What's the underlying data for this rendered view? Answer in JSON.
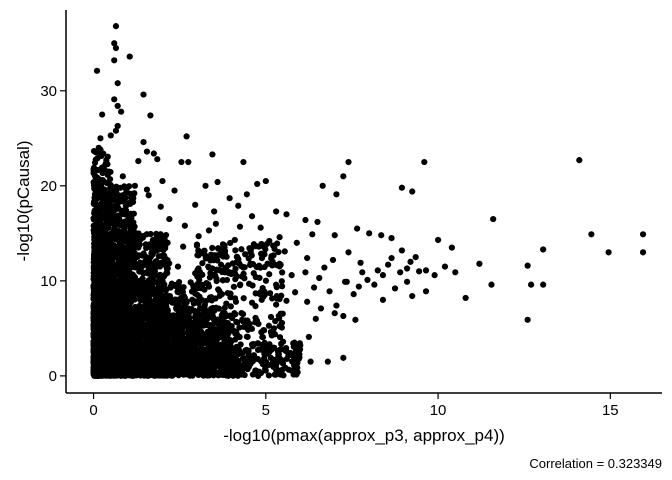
{
  "chart_data": {
    "type": "scatter",
    "title": "",
    "xlabel": "-log10(pmax(approx_p3, approx_p4))",
    "ylabel": "-log10(pCausal)",
    "caption": "Correlation = 0.323349",
    "xlim": [
      -0.8,
      16.5
    ],
    "ylim": [
      -1.8,
      38.5
    ],
    "x_ticks": [
      0,
      5,
      10,
      15
    ],
    "x_tick_labels": [
      "0",
      "5",
      "10",
      "15"
    ],
    "y_ticks": [
      0,
      10,
      20,
      30
    ],
    "y_tick_labels": [
      "0",
      "10",
      "20",
      "30"
    ],
    "grid": false,
    "legend": "none",
    "point_color": "#000000",
    "points": [
      [
        0.65,
        36.8
      ],
      [
        0.6,
        35.0
      ],
      [
        0.65,
        34.5
      ],
      [
        1.05,
        33.6
      ],
      [
        0.6,
        33.2
      ],
      [
        0.1,
        32.1
      ],
      [
        0.7,
        30.8
      ],
      [
        1.45,
        29.6
      ],
      [
        0.6,
        29.1
      ],
      [
        0.25,
        27.5
      ],
      [
        0.7,
        28.4
      ],
      [
        0.8,
        27.8
      ],
      [
        1.65,
        27.4
      ],
      [
        0.7,
        26.3
      ],
      [
        0.5,
        25.3
      ],
      [
        0.65,
        25.8
      ],
      [
        2.7,
        25.2
      ],
      [
        0.2,
        25.0
      ],
      [
        0.15,
        24.0
      ],
      [
        0.2,
        23.8
      ],
      [
        1.45,
        24.6
      ],
      [
        1.55,
        23.6
      ],
      [
        1.75,
        23.4
      ],
      [
        1.3,
        22.6
      ],
      [
        0.3,
        22.0
      ],
      [
        0.35,
        22.3
      ],
      [
        1.85,
        22.8
      ],
      [
        2.75,
        22.5
      ],
      [
        2.55,
        22.5
      ],
      [
        3.45,
        23.3
      ],
      [
        4.35,
        22.5
      ],
      [
        7.4,
        22.5
      ],
      [
        9.6,
        22.5
      ],
      [
        14.1,
        22.7
      ],
      [
        0.15,
        20.5
      ],
      [
        2.0,
        20.5
      ],
      [
        1.55,
        19.6
      ],
      [
        3.25,
        20.0
      ],
      [
        4.75,
        20.2
      ],
      [
        5.0,
        20.5
      ],
      [
        7.25,
        21.0
      ],
      [
        6.65,
        20.0
      ],
      [
        7.05,
        19.1
      ],
      [
        8.95,
        19.8
      ],
      [
        9.25,
        19.4
      ],
      [
        0.25,
        17.8
      ],
      [
        3.5,
        17.3
      ],
      [
        5.3,
        17.3
      ],
      [
        5.6,
        17.0
      ],
      [
        6.15,
        16.4
      ],
      [
        6.5,
        16.2
      ],
      [
        11.6,
        16.5
      ],
      [
        6.35,
        14.9
      ],
      [
        7.0,
        14.8
      ],
      [
        7.65,
        15.5
      ],
      [
        8.0,
        15.0
      ],
      [
        8.35,
        14.8
      ],
      [
        8.65,
        14.5
      ],
      [
        10.0,
        14.3
      ],
      [
        10.4,
        13.5
      ],
      [
        13.05,
        13.3
      ],
      [
        14.45,
        14.9
      ],
      [
        15.95,
        14.9
      ],
      [
        15.95,
        13.0
      ],
      [
        14.95,
        13.0
      ],
      [
        7.4,
        13.0
      ],
      [
        8.95,
        13.2
      ],
      [
        9.35,
        12.5
      ],
      [
        9.2,
        12.0
      ],
      [
        8.65,
        12.4
      ],
      [
        8.55,
        11.7
      ],
      [
        7.75,
        11.9
      ],
      [
        6.95,
        12.2
      ],
      [
        6.7,
        11.4
      ],
      [
        6.2,
        12.4
      ],
      [
        7.8,
        10.9
      ],
      [
        8.25,
        11.1
      ],
      [
        8.4,
        10.6
      ],
      [
        8.9,
        10.9
      ],
      [
        9.1,
        11.3
      ],
      [
        9.45,
        11.0
      ],
      [
        9.65,
        11.1
      ],
      [
        10.2,
        11.5
      ],
      [
        11.2,
        11.8
      ],
      [
        12.6,
        11.6
      ],
      [
        9.9,
        10.6
      ],
      [
        10.5,
        10.9
      ],
      [
        12.7,
        9.6
      ],
      [
        13.05,
        9.6
      ],
      [
        11.55,
        9.6
      ],
      [
        10.8,
        8.2
      ],
      [
        9.25,
        8.4
      ],
      [
        9.65,
        8.9
      ],
      [
        9.1,
        9.9
      ],
      [
        8.75,
        9.2
      ],
      [
        8.4,
        8.0
      ],
      [
        8.15,
        9.6
      ],
      [
        7.95,
        10.1
      ],
      [
        7.7,
        9.4
      ],
      [
        7.55,
        8.6
      ],
      [
        7.35,
        9.9
      ],
      [
        6.85,
        8.9
      ],
      [
        7.05,
        7.4
      ],
      [
        6.6,
        7.1
      ],
      [
        6.2,
        7.8
      ],
      [
        6.45,
        6.0
      ],
      [
        7.25,
        6.3
      ],
      [
        7.6,
        5.9
      ],
      [
        7.0,
        6.6
      ],
      [
        12.6,
        5.9
      ],
      [
        5.15,
        6.2
      ],
      [
        5.3,
        7.5
      ],
      [
        5.6,
        7.9
      ],
      [
        5.85,
        8.8
      ],
      [
        6.4,
        9.3
      ],
      [
        7.3,
        9.9
      ],
      [
        6.25,
        4.1
      ],
      [
        6.0,
        3.2
      ],
      [
        5.5,
        3.6
      ],
      [
        5.35,
        2.6
      ],
      [
        4.95,
        4.8
      ],
      [
        6.8,
        1.5
      ],
      [
        7.25,
        1.9
      ],
      [
        6.3,
        1.5
      ],
      [
        5.2,
        12.0
      ],
      [
        5.55,
        13.1
      ],
      [
        5.9,
        14.0
      ],
      [
        5.4,
        14.6
      ],
      [
        4.85,
        15.6
      ],
      [
        4.6,
        16.8
      ],
      [
        4.2,
        17.9
      ],
      [
        3.95,
        18.7
      ],
      [
        4.45,
        19.1
      ],
      [
        3.6,
        20.4
      ],
      [
        2.95,
        18.0
      ],
      [
        3.35,
        15.3
      ],
      [
        4.1,
        14.3
      ],
      [
        2.6,
        13.6
      ],
      [
        2.95,
        10.8
      ],
      [
        3.7,
        11.7
      ],
      [
        4.35,
        11.4
      ],
      [
        4.65,
        10.8
      ],
      [
        5.05,
        11.8
      ],
      [
        5.75,
        10.6
      ],
      [
        6.15,
        10.9
      ],
      [
        6.55,
        10.3
      ],
      [
        2.55,
        3.1
      ],
      [
        2.3,
        1.6
      ],
      [
        1.95,
        1.1
      ],
      [
        2.75,
        1.8
      ],
      [
        3.15,
        2.6
      ],
      [
        3.5,
        2.1
      ],
      [
        3.9,
        3.5
      ],
      [
        4.1,
        2.9
      ],
      [
        3.85,
        4.4
      ],
      [
        4.6,
        3.3
      ],
      [
        1.4,
        0.6
      ],
      [
        1.75,
        0.3
      ],
      [
        2.05,
        0.1
      ],
      [
        2.4,
        0.4
      ],
      [
        0.55,
        18.5
      ],
      [
        0.85,
        21.0
      ],
      [
        1.0,
        17.0
      ],
      [
        1.6,
        19.0
      ],
      [
        2.2,
        16.5
      ],
      [
        1.2,
        20.0
      ],
      [
        0.9,
        16.0
      ],
      [
        0.45,
        19.0
      ],
      [
        0.2,
        16.5
      ],
      [
        2.35,
        19.5
      ],
      [
        1.95,
        17.8
      ],
      [
        2.65,
        15.8
      ],
      [
        3.05,
        14.7
      ],
      [
        2.15,
        14.0
      ],
      [
        1.3,
        13.5
      ],
      [
        0.75,
        14.5
      ],
      [
        1.05,
        12.5
      ],
      [
        1.8,
        12.0
      ],
      [
        2.45,
        11.5
      ],
      [
        3.3,
        12.5
      ],
      [
        3.8,
        13.5
      ],
      [
        4.4,
        12.8
      ],
      [
        4.8,
        13.6
      ],
      [
        5.1,
        14.2
      ],
      [
        4.25,
        15.7
      ],
      [
        3.55,
        16.0
      ]
    ],
    "dense_regions": [
      {
        "x": [
          0.0,
          1.2
        ],
        "y": [
          0.0,
          20.0
        ],
        "n": 900
      },
      {
        "x": [
          0.0,
          2.2
        ],
        "y": [
          0.0,
          15.0
        ],
        "n": 900
      },
      {
        "x": [
          0.0,
          3.0
        ],
        "y": [
          0.0,
          10.0
        ],
        "n": 1000
      },
      {
        "x": [
          0.0,
          4.2
        ],
        "y": [
          0.0,
          6.5
        ],
        "n": 800
      },
      {
        "x": [
          0.0,
          6.0
        ],
        "y": [
          0.0,
          3.5
        ],
        "n": 600
      },
      {
        "x": [
          3.0,
          5.5
        ],
        "y": [
          4.0,
          14.0
        ],
        "n": 300
      },
      {
        "x": [
          0.0,
          0.5
        ],
        "y": [
          0.0,
          24.0
        ],
        "n": 300
      }
    ]
  }
}
